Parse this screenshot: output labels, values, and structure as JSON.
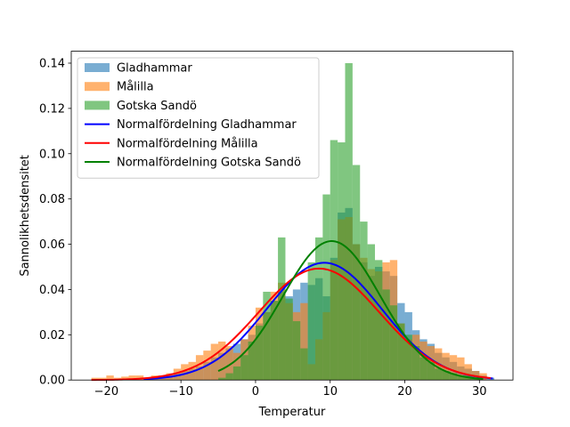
{
  "chart_data": {
    "type": "bar",
    "title": "",
    "xlabel": "Temperatur",
    "ylabel": "Sannolikhetsdensitet",
    "xlim": [
      -24.7,
      34.5
    ],
    "ylim": [
      0,
      0.14526
    ],
    "xticks": [
      -20,
      -10,
      0,
      10,
      20,
      30
    ],
    "xtick_labels": [
      "−20",
      "−10",
      "0",
      "10",
      "20",
      "30"
    ],
    "yticks": [
      0.0,
      0.02,
      0.04,
      0.06,
      0.08,
      0.1,
      0.12,
      0.14
    ],
    "ytick_labels": [
      "0.00",
      "0.02",
      "0.04",
      "0.06",
      "0.08",
      "0.10",
      "0.12",
      "0.14"
    ],
    "grid": false,
    "legend_position": "top-left",
    "legend": [
      {
        "label": "Gladhammar",
        "kind": "patch",
        "color": "#1f77b4"
      },
      {
        "label": "Målilla",
        "kind": "patch",
        "color": "#ff7f0e"
      },
      {
        "label": "Gotska Sandö",
        "kind": "patch",
        "color": "#2ca02c"
      },
      {
        "label": "Normalfördelning Gladhammar",
        "kind": "line",
        "color": "#0000ff"
      },
      {
        "label": "Normalfördelning Målilla",
        "kind": "line",
        "color": "#ff0000"
      },
      {
        "label": "Normalfördelning Gotska Sandö",
        "kind": "line",
        "color": "#008000"
      }
    ],
    "histograms": [
      {
        "name": "Gladhammar",
        "color": "#1f77b4",
        "alpha": 0.6,
        "bin_edges": [
          -15.0,
          -14.0,
          -13.0,
          -12.0,
          -11.0,
          -10.0,
          -9.0,
          -8.0,
          -7.0,
          -6.0,
          -5.0,
          -4.0,
          -3.0,
          -2.0,
          -1.0,
          0.0,
          1.0,
          2.0,
          3.0,
          4.0,
          5.0,
          6.0,
          7.0,
          8.0,
          9.0,
          10.0,
          11.0,
          12.0,
          13.0,
          14.0,
          15.0,
          16.0,
          17.0,
          18.0,
          19.0,
          20.0,
          21.0,
          22.0,
          23.0,
          24.0,
          25.0,
          26.0,
          27.0,
          28.0,
          29.0,
          30.0,
          31.0,
          32.0
        ],
        "values": [
          0.001,
          0.001,
          0.002,
          0.002,
          0.003,
          0.004,
          0.005,
          0.006,
          0.008,
          0.01,
          0.012,
          0.014,
          0.016,
          0.018,
          0.02,
          0.025,
          0.03,
          0.035,
          0.039,
          0.037,
          0.04,
          0.043,
          0.042,
          0.045,
          0.037,
          0.054,
          0.074,
          0.076,
          0.06,
          0.052,
          0.046,
          0.05,
          0.048,
          0.046,
          0.034,
          0.03,
          0.022,
          0.018,
          0.016,
          0.012,
          0.01,
          0.008,
          0.006,
          0.005,
          0.004,
          0.002,
          0.001
        ]
      },
      {
        "name": "Målilla",
        "color": "#ff7f0e",
        "alpha": 0.6,
        "bin_edges": [
          -22.0,
          -21.0,
          -20.0,
          -19.0,
          -18.0,
          -17.0,
          -16.0,
          -15.0,
          -14.0,
          -13.0,
          -12.0,
          -11.0,
          -10.0,
          -9.0,
          -8.0,
          -7.0,
          -6.0,
          -5.0,
          -4.0,
          -3.0,
          -2.0,
          -1.0,
          0.0,
          1.0,
          2.0,
          3.0,
          4.0,
          5.0,
          6.0,
          7.0,
          8.0,
          9.0,
          10.0,
          11.0,
          12.0,
          13.0,
          14.0,
          15.0,
          16.0,
          17.0,
          18.0,
          19.0,
          20.0,
          21.0,
          22.0,
          23.0,
          24.0,
          25.0,
          26.0,
          27.0,
          28.0,
          29.0,
          30.0,
          31.0
        ],
        "values": [
          0.001,
          0.001,
          0.002,
          0.001,
          0.0015,
          0.002,
          0.002,
          0.001,
          0.002,
          0.002,
          0.003,
          0.005,
          0.007,
          0.008,
          0.011,
          0.013,
          0.016,
          0.017,
          0.015,
          0.012,
          0.018,
          0.024,
          0.032,
          0.03,
          0.039,
          0.043,
          0.034,
          0.03,
          0.034,
          0.007,
          0.018,
          0.03,
          0.053,
          0.071,
          0.072,
          0.06,
          0.054,
          0.049,
          0.048,
          0.052,
          0.053,
          0.025,
          0.018,
          0.02,
          0.017,
          0.015,
          0.014,
          0.012,
          0.011,
          0.01,
          0.007,
          0.004,
          0.003,
          0.002
        ]
      },
      {
        "name": "Gotska Sandö",
        "color": "#2ca02c",
        "alpha": 0.6,
        "bin_edges": [
          -5.0,
          -4.0,
          -3.0,
          -2.0,
          -1.0,
          0.0,
          1.0,
          2.0,
          3.0,
          4.0,
          5.0,
          6.0,
          7.0,
          8.0,
          9.0,
          10.0,
          11.0,
          12.0,
          13.0,
          14.0,
          15.0,
          16.0,
          17.0,
          18.0,
          19.0,
          20.0,
          21.0,
          22.0,
          23.0,
          24.0,
          25.0,
          26.0,
          27.0,
          28.0,
          29.0,
          30.0
        ],
        "values": [
          0.001,
          0.003,
          0.006,
          0.011,
          0.017,
          0.024,
          0.039,
          0.035,
          0.063,
          0.036,
          0.026,
          0.014,
          0.052,
          0.063,
          0.082,
          0.106,
          0.105,
          0.14,
          0.095,
          0.07,
          0.06,
          0.053,
          0.04,
          0.033,
          0.025,
          0.02,
          0.015,
          0.01,
          0.008,
          0.005,
          0.004,
          0.003,
          0.002,
          0.002,
          0.001
        ]
      }
    ],
    "series": [
      {
        "name": "Normalfördelning Gladhammar",
        "color": "#0000ff",
        "mean": 9.2,
        "std": 7.7,
        "x_range": [
          -15.0,
          31.8
        ]
      },
      {
        "name": "Normalfördelning Målilla",
        "color": "#ff0000",
        "mean": 8.5,
        "std": 8.1,
        "x_range": [
          -22.0,
          31.5
        ]
      },
      {
        "name": "Normalfördelning Gotska Sandö",
        "color": "#008000",
        "mean": 10.2,
        "std": 6.5,
        "x_range": [
          -5.0,
          30.5
        ]
      }
    ]
  }
}
